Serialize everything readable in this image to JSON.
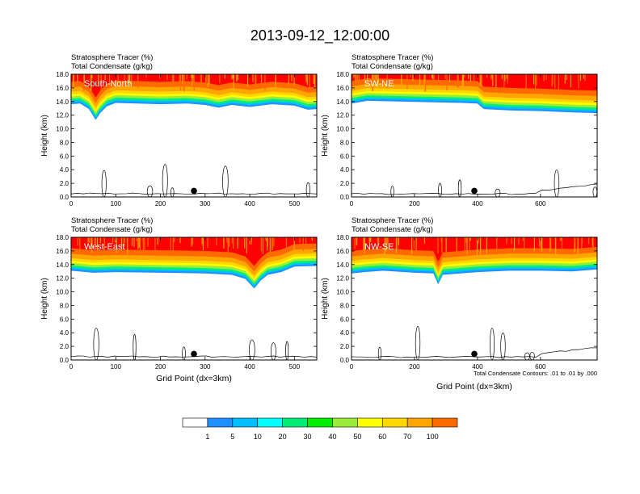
{
  "title": "2013-09-12_12:00:00",
  "chart_data": {
    "type": "heatmap",
    "title": "2013-09-12_12:00:00",
    "colorbar": {
      "colors": [
        "#ffffff",
        "#1e90ff",
        "#00bfff",
        "#00ffff",
        "#00ee76",
        "#00ee00",
        "#9aee3a",
        "#ffff00",
        "#ffd700",
        "#ffa500",
        "#ff6a00",
        "#ff0000"
      ],
      "labels": [
        "1",
        "5",
        "10",
        "20",
        "30",
        "40",
        "50",
        "60",
        "70",
        "100"
      ]
    },
    "panels": [
      {
        "name": "South-North",
        "label1": "Stratosphere Tracer   (%)",
        "label2": "Total Condensate   (g/kg)",
        "ylabel": "Height (km)",
        "xlabel": "",
        "xlim": [
          0,
          550
        ],
        "ylim": [
          0,
          18
        ],
        "xticks": [
          "0",
          "100",
          "200",
          "300",
          "400",
          "500"
        ],
        "yticks": [
          "0.0",
          "2.0",
          "4.0",
          "6.0",
          "8.0",
          "10.0",
          "12.0",
          "14.0",
          "16.0",
          "18.0"
        ],
        "dot_x": 275,
        "tropopause": [
          [
            0,
            14.5
          ],
          [
            20,
            14.6
          ],
          [
            40,
            13.8
          ],
          [
            55,
            12.2
          ],
          [
            65,
            13.2
          ],
          [
            80,
            14.2
          ],
          [
            100,
            14.7
          ],
          [
            150,
            14.6
          ],
          [
            200,
            14.5
          ],
          [
            260,
            14.6
          ],
          [
            300,
            14.4
          ],
          [
            330,
            14.0
          ],
          [
            360,
            14.4
          ],
          [
            400,
            14.1
          ],
          [
            450,
            14.5
          ],
          [
            500,
            14.3
          ],
          [
            530,
            13.7
          ],
          [
            550,
            13.8
          ]
        ],
        "footnote": ""
      },
      {
        "name": "SW-NE",
        "label1": "Stratosphere Tracer   (%)",
        "label2": "Total Condensate   (g/kg)",
        "ylabel": "Height (km)",
        "xlabel": "",
        "xlim": [
          0,
          780
        ],
        "ylim": [
          0,
          18
        ],
        "xticks": [
          "0",
          "200",
          "400",
          "600"
        ],
        "yticks": [
          "0.0",
          "2.0",
          "4.0",
          "6.0",
          "8.0",
          "10.0",
          "12.0",
          "14.0",
          "16.0",
          "18.0"
        ],
        "dot_x": 390,
        "tropopause": [
          [
            0,
            14.6
          ],
          [
            50,
            15.0
          ],
          [
            150,
            14.9
          ],
          [
            250,
            14.8
          ],
          [
            350,
            14.7
          ],
          [
            400,
            14.6
          ],
          [
            420,
            13.8
          ],
          [
            500,
            13.6
          ],
          [
            600,
            13.5
          ],
          [
            700,
            13.3
          ],
          [
            780,
            13.2
          ]
        ],
        "footnote": ""
      },
      {
        "name": "West-East",
        "label1": "Stratosphere Tracer   (%)",
        "label2": "Total Condensate   (g/kg)",
        "ylabel": "Height (km)",
        "xlabel": "Grid Point (dx=3km)",
        "xlim": [
          0,
          550
        ],
        "ylim": [
          0,
          18
        ],
        "xticks": [
          "0",
          "100",
          "200",
          "300",
          "400",
          "500"
        ],
        "yticks": [
          "0.0",
          "2.0",
          "4.0",
          "6.0",
          "8.0",
          "10.0",
          "12.0",
          "14.0",
          "16.0",
          "18.0"
        ],
        "dot_x": 275,
        "tropopause": [
          [
            0,
            14.0
          ],
          [
            50,
            13.7
          ],
          [
            100,
            13.8
          ],
          [
            200,
            13.7
          ],
          [
            300,
            13.6
          ],
          [
            360,
            13.4
          ],
          [
            390,
            12.8
          ],
          [
            410,
            11.4
          ],
          [
            425,
            12.6
          ],
          [
            440,
            13.4
          ],
          [
            470,
            13.8
          ],
          [
            500,
            14.6
          ],
          [
            550,
            14.7
          ]
        ],
        "footnote": ""
      },
      {
        "name": "NW-SE",
        "label1": "Stratosphere Tracer   (%)",
        "label2": "Total Condensate   (g/kg)",
        "ylabel": "Height (km)",
        "xlabel": "Grid Point (dx=3km)",
        "xlim": [
          0,
          780
        ],
        "ylim": [
          0,
          18
        ],
        "xticks": [
          "0",
          "200",
          "400",
          "600"
        ],
        "yticks": [
          "0.0",
          "2.0",
          "4.0",
          "6.0",
          "8.0",
          "10.0",
          "12.0",
          "14.0",
          "16.0",
          "18.0"
        ],
        "dot_x": 390,
        "tropopause": [
          [
            0,
            13.6
          ],
          [
            40,
            13.8
          ],
          [
            100,
            14.0
          ],
          [
            200,
            13.7
          ],
          [
            260,
            13.6
          ],
          [
            275,
            12.0
          ],
          [
            290,
            13.4
          ],
          [
            400,
            13.8
          ],
          [
            500,
            14.0
          ],
          [
            600,
            14.0
          ],
          [
            700,
            13.9
          ],
          [
            780,
            14.2
          ]
        ],
        "footnote": "Total Condensate Contours: .01 to .01 by .000"
      }
    ]
  }
}
